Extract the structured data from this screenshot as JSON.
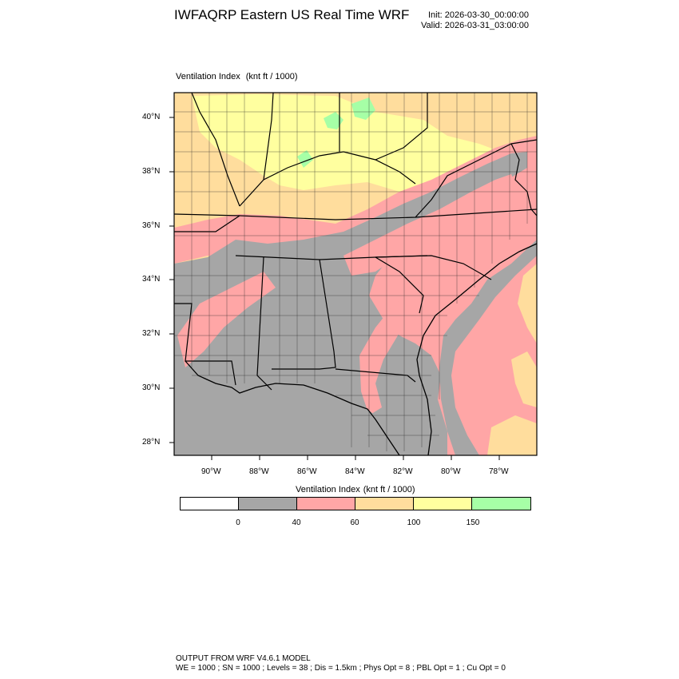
{
  "header": {
    "title": "IWFAQRP Eastern US Real Time WRF",
    "init": "Init: 2026-03-30_00:00:00",
    "valid": "Valid: 2026-03-31_03:00:00"
  },
  "map": {
    "field_name": "Ventilation Index",
    "field_units": "(knt ft / 1000)",
    "lat_ticks": [
      "40°N",
      "38°N",
      "36°N",
      "34°N",
      "32°N",
      "30°N",
      "28°N"
    ],
    "lon_ticks": [
      "90°W",
      "88°W",
      "86°W",
      "84°W",
      "82°W",
      "80°W",
      "78°W"
    ],
    "extent": {
      "lon_min": -91.5,
      "lon_max": -76.6,
      "lat_min": 27.5,
      "lat_max": 40.9
    }
  },
  "legend": {
    "title": "Ventilation Index",
    "units": "(knt ft / 1000)",
    "bins": [
      {
        "color": "#ffffff"
      },
      {
        "color": "#a6a6a6"
      },
      {
        "color": "#ffa6a6"
      },
      {
        "color": "#ffdd9d"
      },
      {
        "color": "#ffff9f"
      },
      {
        "color": "#a6ffa6"
      }
    ],
    "labels": [
      "0",
      "40",
      "60",
      "100",
      "150"
    ]
  },
  "footer": {
    "line1": "OUTPUT FROM WRF V4.6.1 MODEL",
    "line2": "WE = 1000 ; SN = 1000 ; Levels = 38 ; Dis = 1.5km ; Phys Opt = 8 ; PBL Opt = 1 ; Cu Opt = 0"
  }
}
